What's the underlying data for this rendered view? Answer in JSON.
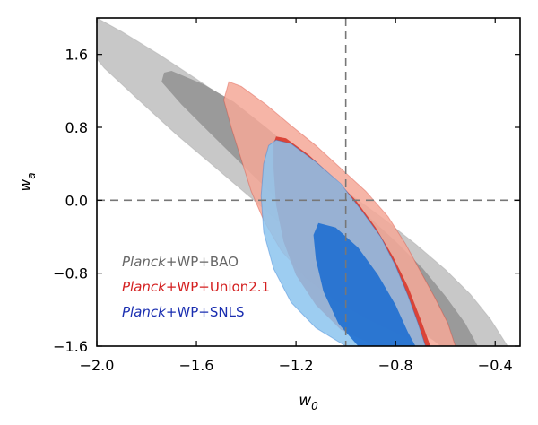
{
  "chart_data": {
    "type": "contour",
    "title": "",
    "xlabel": "w",
    "xlabel_sub": "0",
    "ylabel": "w",
    "ylabel_sub": "a",
    "xlim": [
      -2.0,
      -0.3
    ],
    "ylim": [
      -1.6,
      2.0
    ],
    "xticks": [
      -2.0,
      -1.6,
      -1.2,
      -0.8,
      -0.4
    ],
    "xtick_labels": [
      "−2.0",
      "−1.6",
      "−1.2",
      "−0.8",
      "−0.4"
    ],
    "yticks": [
      -1.6,
      -0.8,
      0.0,
      0.8,
      1.6
    ],
    "ytick_labels": [
      "−1.6",
      "−0.8",
      "0.0",
      "0.8",
      "1.6"
    ],
    "reference_lines": [
      {
        "axis": "x",
        "value": -1.0,
        "style": "dashed"
      },
      {
        "axis": "y",
        "value": 0.0,
        "style": "dashed"
      }
    ],
    "series": [
      {
        "name": "Planck+WP+BAO",
        "legend_parts": [
          "Planck",
          "+WP+BAO"
        ],
        "legend_color": "#666666",
        "colors": {
          "c95": "#c8c8c8",
          "c68": "#9a9a9a"
        },
        "contour_95": [
          [
            -2.0,
            2.0
          ],
          [
            -1.9,
            1.85
          ],
          [
            -1.75,
            1.6
          ],
          [
            -1.6,
            1.33
          ],
          [
            -1.45,
            1.05
          ],
          [
            -1.3,
            0.72
          ],
          [
            -1.15,
            0.4
          ],
          [
            -1.0,
            0.1
          ],
          [
            -0.85,
            -0.2
          ],
          [
            -0.72,
            -0.48
          ],
          [
            -0.6,
            -0.76
          ],
          [
            -0.5,
            -1.03
          ],
          [
            -0.42,
            -1.3
          ],
          [
            -0.35,
            -1.6
          ],
          [
            -0.6,
            -1.6
          ],
          [
            -0.78,
            -1.35
          ],
          [
            -0.93,
            -1.05
          ],
          [
            -1.07,
            -0.72
          ],
          [
            -1.22,
            -0.35
          ],
          [
            -1.37,
            0.0
          ],
          [
            -1.52,
            0.35
          ],
          [
            -1.68,
            0.72
          ],
          [
            -1.84,
            1.12
          ],
          [
            -1.97,
            1.45
          ],
          [
            -2.0,
            1.55
          ]
        ],
        "contour_68": [
          [
            -1.7,
            1.42
          ],
          [
            -1.57,
            1.27
          ],
          [
            -1.45,
            1.08
          ],
          [
            -1.32,
            0.8
          ],
          [
            -1.18,
            0.48
          ],
          [
            -1.05,
            0.15
          ],
          [
            -0.92,
            -0.15
          ],
          [
            -0.8,
            -0.45
          ],
          [
            -0.69,
            -0.75
          ],
          [
            -0.6,
            -1.05
          ],
          [
            -0.52,
            -1.35
          ],
          [
            -0.47,
            -1.6
          ],
          [
            -0.62,
            -1.6
          ],
          [
            -0.72,
            -1.38
          ],
          [
            -0.84,
            -1.1
          ],
          [
            -0.96,
            -0.8
          ],
          [
            -1.08,
            -0.5
          ],
          [
            -1.2,
            -0.2
          ],
          [
            -1.3,
            0.08
          ],
          [
            -1.42,
            0.4
          ],
          [
            -1.55,
            0.75
          ],
          [
            -1.66,
            1.05
          ],
          [
            -1.74,
            1.3
          ],
          [
            -1.73,
            1.4
          ]
        ]
      },
      {
        "name": "Planck+WP+Union2.1",
        "legend_parts": [
          "Planck",
          "+WP+Union2.1"
        ],
        "legend_color": "#d42020",
        "colors": {
          "c95": "#f5a898",
          "c68": "#d8382c"
        },
        "contour_95": [
          [
            -1.47,
            1.3
          ],
          [
            -1.42,
            1.25
          ],
          [
            -1.32,
            1.05
          ],
          [
            -1.22,
            0.82
          ],
          [
            -1.12,
            0.6
          ],
          [
            -1.02,
            0.35
          ],
          [
            -0.92,
            0.1
          ],
          [
            -0.83,
            -0.18
          ],
          [
            -0.76,
            -0.48
          ],
          [
            -0.7,
            -0.78
          ],
          [
            -0.64,
            -1.08
          ],
          [
            -0.59,
            -1.35
          ],
          [
            -0.56,
            -1.6
          ],
          [
            -0.66,
            -1.6
          ],
          [
            -0.76,
            -1.5
          ],
          [
            -0.9,
            -1.32
          ],
          [
            -1.04,
            -1.1
          ],
          [
            -1.16,
            -0.85
          ],
          [
            -1.26,
            -0.55
          ],
          [
            -1.33,
            -0.22
          ],
          [
            -1.38,
            0.1
          ],
          [
            -1.42,
            0.45
          ],
          [
            -1.46,
            0.8
          ],
          [
            -1.49,
            1.1
          ]
        ],
        "contour_68": [
          [
            -1.28,
            0.7
          ],
          [
            -1.24,
            0.68
          ],
          [
            -1.15,
            0.5
          ],
          [
            -1.05,
            0.25
          ],
          [
            -0.96,
            0.0
          ],
          [
            -0.88,
            -0.3
          ],
          [
            -0.81,
            -0.62
          ],
          [
            -0.75,
            -0.95
          ],
          [
            -0.7,
            -1.3
          ],
          [
            -0.66,
            -1.6
          ],
          [
            -0.88,
            -1.6
          ],
          [
            -1.02,
            -1.42
          ],
          [
            -1.12,
            -1.15
          ],
          [
            -1.2,
            -0.82
          ],
          [
            -1.25,
            -0.45
          ],
          [
            -1.28,
            -0.05
          ],
          [
            -1.29,
            0.35
          ],
          [
            -1.29,
            0.62
          ]
        ]
      },
      {
        "name": "Planck+WP+SNLS",
        "legend_parts": [
          "Planck",
          "+WP+SNLS"
        ],
        "legend_color": "#1a2eb0",
        "colors": {
          "c95": "#8cc4ee",
          "c68": "#1f6fd0"
        },
        "contour_95": [
          [
            -1.28,
            0.66
          ],
          [
            -1.22,
            0.62
          ],
          [
            -1.12,
            0.42
          ],
          [
            -1.02,
            0.18
          ],
          [
            -0.94,
            -0.1
          ],
          [
            -0.86,
            -0.4
          ],
          [
            -0.8,
            -0.72
          ],
          [
            -0.75,
            -1.05
          ],
          [
            -0.71,
            -1.35
          ],
          [
            -0.68,
            -1.6
          ],
          [
            -1.0,
            -1.6
          ],
          [
            -1.12,
            -1.4
          ],
          [
            -1.22,
            -1.12
          ],
          [
            -1.29,
            -0.75
          ],
          [
            -1.33,
            -0.35
          ],
          [
            -1.34,
            0.05
          ],
          [
            -1.33,
            0.4
          ],
          [
            -1.31,
            0.6
          ]
        ],
        "contour_68": [
          [
            -1.11,
            -0.25
          ],
          [
            -1.04,
            -0.3
          ],
          [
            -0.95,
            -0.52
          ],
          [
            -0.87,
            -0.82
          ],
          [
            -0.8,
            -1.15
          ],
          [
            -0.75,
            -1.45
          ],
          [
            -0.72,
            -1.6
          ],
          [
            -0.95,
            -1.6
          ],
          [
            -1.03,
            -1.35
          ],
          [
            -1.09,
            -1.0
          ],
          [
            -1.12,
            -0.65
          ],
          [
            -1.13,
            -0.38
          ]
        ]
      }
    ]
  }
}
